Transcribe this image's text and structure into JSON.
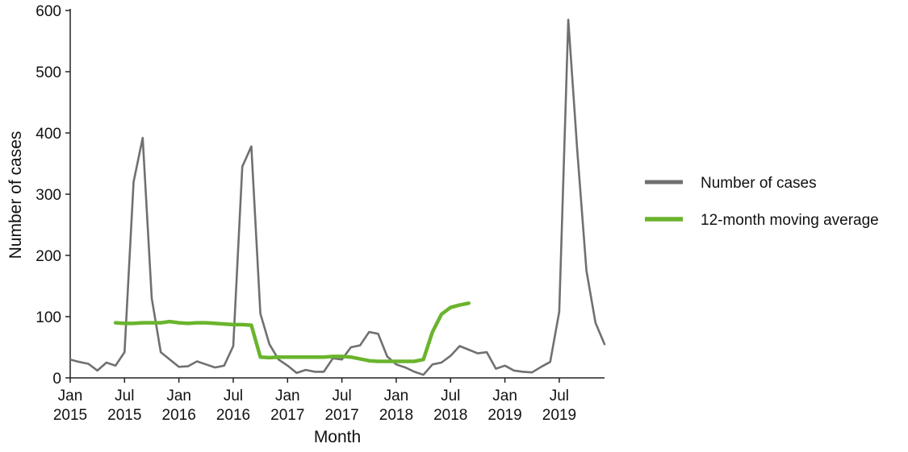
{
  "chart_data": {
    "type": "line",
    "xlabel": "Month",
    "ylabel": "Number of cases",
    "ylim": [
      0,
      600
    ],
    "yticks": [
      0,
      100,
      200,
      300,
      400,
      500,
      600
    ],
    "x_start": "Jan 2015",
    "x_end": "Dec 2019",
    "xticks": [
      {
        "month": "Jan",
        "year": "2015"
      },
      {
        "month": "Jul",
        "year": "2015"
      },
      {
        "month": "Jan",
        "year": "2016"
      },
      {
        "month": "Jul",
        "year": "2016"
      },
      {
        "month": "Jan",
        "year": "2017"
      },
      {
        "month": "Jul",
        "year": "2017"
      },
      {
        "month": "Jan",
        "year": "2018"
      },
      {
        "month": "Jul",
        "year": "2018"
      },
      {
        "month": "Jan",
        "year": "2019"
      },
      {
        "month": "Jul",
        "year": "2019"
      }
    ],
    "legend_position": "right",
    "grid": false,
    "series": [
      {
        "name": "Number of cases",
        "color": "#707070",
        "start": "Jan 2015",
        "values": [
          30,
          26,
          23,
          12,
          25,
          20,
          42,
          320,
          392,
          130,
          42,
          30,
          18,
          19,
          27,
          22,
          17,
          20,
          52,
          345,
          378,
          105,
          55,
          30,
          20,
          8,
          13,
          10,
          10,
          32,
          30,
          50,
          53,
          75,
          72,
          35,
          22,
          17,
          10,
          5,
          22,
          25,
          36,
          52,
          46,
          40,
          42,
          15,
          20,
          12,
          10,
          9,
          18,
          26,
          108,
          585,
          370,
          175,
          90,
          55
        ]
      },
      {
        "name": "12-month moving average",
        "color": "#6ab42d",
        "start": "Jun 2015",
        "values": [
          90,
          89,
          89,
          90,
          90,
          90,
          92,
          90,
          89,
          90,
          90,
          89,
          88,
          87,
          87,
          86,
          34,
          33,
          34,
          34,
          34,
          34,
          34,
          34,
          35,
          35,
          34,
          31,
          28,
          27,
          27,
          27,
          27,
          27,
          30,
          75,
          104,
          115,
          119,
          122
        ]
      }
    ]
  }
}
